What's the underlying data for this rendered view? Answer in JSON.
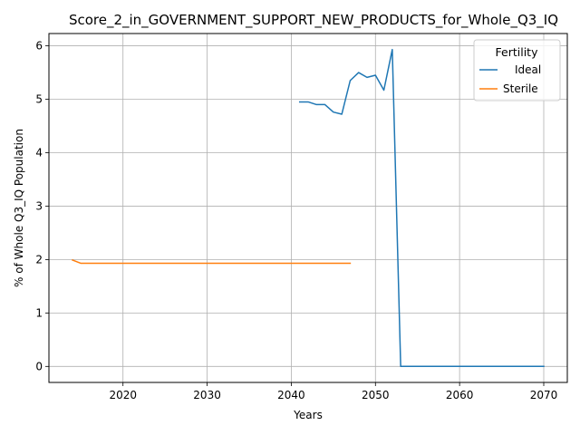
{
  "chart_data": {
    "type": "line",
    "title": "Score_2_in_GOVERNMENT_SUPPORT_NEW_PRODUCTS_for_Whole_Q3_IQ",
    "xlabel": "Years",
    "ylabel": "% of Whole Q3_IQ Population",
    "xlim": [
      2011.2,
      2072.8
    ],
    "ylim": [
      -0.3,
      6.23
    ],
    "xticks": [
      2020,
      2030,
      2040,
      2050,
      2060,
      2070
    ],
    "yticks": [
      0,
      1,
      2,
      3,
      4,
      5,
      6
    ],
    "grid": true,
    "legend": {
      "title": "Fertility",
      "placement": "top-right"
    },
    "series": [
      {
        "name": "Ideal",
        "color": "#1f77b4",
        "x": [
          2041,
          2042,
          2043,
          2044,
          2045,
          2046,
          2047,
          2048,
          2049,
          2050,
          2051,
          2052,
          2053,
          2054,
          2055,
          2056,
          2057,
          2058,
          2059,
          2060,
          2061,
          2062,
          2063,
          2064,
          2065,
          2066,
          2067,
          2068,
          2069,
          2070
        ],
        "y": [
          4.95,
          4.95,
          4.9,
          4.9,
          4.76,
          4.72,
          5.35,
          5.5,
          5.41,
          5.45,
          5.17,
          5.93,
          0,
          0,
          0,
          0,
          0,
          0,
          0,
          0,
          0,
          0,
          0,
          0,
          0,
          0,
          0,
          0,
          0,
          0
        ]
      },
      {
        "name": "Sterile",
        "color": "#ff7f0e",
        "x": [
          2014,
          2015,
          2016,
          2017,
          2018,
          2019,
          2020,
          2021,
          2022,
          2023,
          2024,
          2025,
          2026,
          2027,
          2028,
          2029,
          2030,
          2031,
          2032,
          2033,
          2034,
          2035,
          2036,
          2037,
          2038,
          2039,
          2040,
          2041,
          2042,
          2043,
          2044,
          2045,
          2046,
          2047
        ],
        "y": [
          1.99,
          1.93,
          1.93,
          1.93,
          1.93,
          1.93,
          1.93,
          1.93,
          1.93,
          1.93,
          1.93,
          1.93,
          1.93,
          1.93,
          1.93,
          1.93,
          1.93,
          1.93,
          1.93,
          1.93,
          1.93,
          1.93,
          1.93,
          1.93,
          1.93,
          1.93,
          1.93,
          1.93,
          1.93,
          1.93,
          1.93,
          1.93,
          1.93,
          1.93
        ]
      }
    ]
  }
}
